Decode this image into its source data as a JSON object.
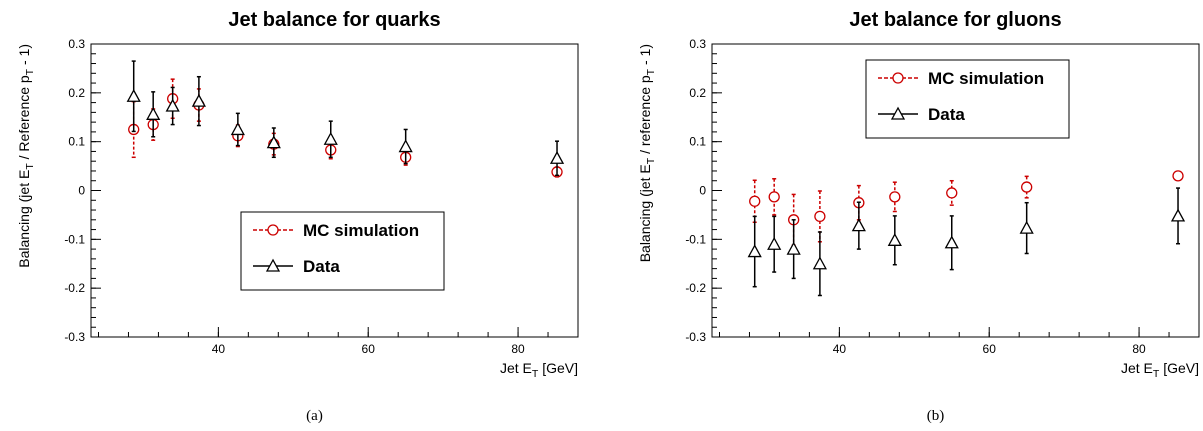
{
  "chart_data": [
    {
      "type": "scatter",
      "title": "Jet balance for quarks",
      "xlabel": "Jet E_T [GeV]",
      "ylabel": "Balancing (jet E_T / Reference p_T  -  1)",
      "xlim": [
        23,
        88
      ],
      "ylim": [
        -0.3,
        0.3
      ],
      "xticks": [
        "40",
        "60",
        "80"
      ],
      "yticks": [
        "-0.3",
        "-0.2",
        "-0.1",
        "0",
        "0.1",
        "0.2",
        "0.3"
      ],
      "grid": false,
      "legend_position": "bottom-center",
      "caption": "(a)",
      "series": [
        {
          "name": "MC simulation",
          "color": "#cc0000",
          "marker": "circle",
          "line_style": "dashed",
          "x": [
            28.7,
            31.3,
            33.9,
            37.4,
            42.6,
            47.4,
            55.0,
            65.0,
            85.2
          ],
          "y": [
            0.125,
            0.135,
            0.188,
            0.175,
            0.112,
            0.095,
            0.083,
            0.068,
            0.038
          ],
          "err": [
            0.057,
            0.032,
            0.04,
            0.033,
            0.022,
            0.022,
            0.018,
            0.016,
            0.01
          ]
        },
        {
          "name": "Data",
          "color": "#000000",
          "marker": "triangle",
          "line_style": "solid",
          "x": [
            28.7,
            31.3,
            33.9,
            37.4,
            42.6,
            47.4,
            55.0,
            65.0,
            85.2
          ],
          "y": [
            0.193,
            0.156,
            0.173,
            0.183,
            0.125,
            0.098,
            0.105,
            0.09,
            0.066
          ],
          "err": [
            0.072,
            0.046,
            0.038,
            0.05,
            0.033,
            0.03,
            0.037,
            0.035,
            0.035
          ]
        }
      ]
    },
    {
      "type": "scatter",
      "title": "Jet balance for gluons",
      "xlabel": "Jet E_T [GeV]",
      "ylabel": "Balancing (jet E_T / reference p_T  -  1)",
      "xlim": [
        23,
        88
      ],
      "ylim": [
        -0.3,
        0.3
      ],
      "xticks": [
        "40",
        "60",
        "80"
      ],
      "yticks": [
        "-0.3",
        "-0.2",
        "-0.1",
        "0",
        "0.1",
        "0.2",
        "0.3"
      ],
      "grid": false,
      "legend_position": "top-center",
      "caption": "(b)",
      "series": [
        {
          "name": "MC simulation",
          "color": "#cc0000",
          "marker": "circle",
          "line_style": "dashed",
          "x": [
            28.7,
            31.3,
            33.9,
            37.4,
            42.6,
            47.4,
            55.0,
            65.0,
            85.2
          ],
          "y": [
            -0.022,
            -0.013,
            -0.06,
            -0.053,
            -0.025,
            -0.013,
            -0.005,
            0.007,
            0.03
          ],
          "err": [
            0.043,
            0.037,
            0.052,
            0.052,
            0.035,
            0.03,
            0.025,
            0.022,
            0.005
          ]
        },
        {
          "name": "Data",
          "color": "#000000",
          "marker": "triangle",
          "line_style": "solid",
          "x": [
            28.7,
            31.3,
            33.9,
            37.4,
            42.6,
            47.4,
            55.0,
            65.0,
            85.2
          ],
          "y": [
            -0.125,
            -0.11,
            -0.12,
            -0.15,
            -0.072,
            -0.102,
            -0.107,
            -0.077,
            -0.052
          ],
          "err": [
            0.072,
            0.057,
            0.06,
            0.065,
            0.048,
            0.05,
            0.055,
            0.052,
            0.057
          ]
        }
      ]
    }
  ]
}
